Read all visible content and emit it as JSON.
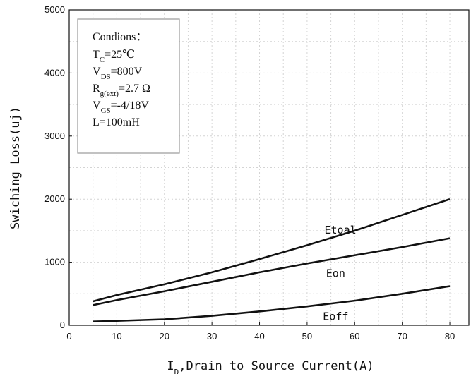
{
  "chart_data": {
    "type": "line",
    "title": "",
    "xlabel": "I",
    "xlabel_sub": "D",
    "xlabel_rest": ",Drain to Source Current(A)",
    "ylabel": "Swiching Loss(uj)",
    "xlim": [
      0,
      84
    ],
    "ylim": [
      0,
      5000
    ],
    "xticks": [
      "0",
      "10",
      "20",
      "30",
      "40",
      "50",
      "60",
      "70",
      "80"
    ],
    "yticks": [
      "0",
      "1000",
      "2000",
      "3000",
      "4000",
      "5000"
    ],
    "grid": true,
    "x": [
      5,
      10,
      20,
      30,
      40,
      50,
      60,
      70,
      80
    ],
    "series": [
      {
        "name": "Etoal",
        "values": [
          380,
          480,
          650,
          840,
          1050,
          1270,
          1500,
          1750,
          2000
        ]
      },
      {
        "name": "Eon",
        "values": [
          320,
          400,
          540,
          690,
          840,
          980,
          1110,
          1240,
          1380
        ]
      },
      {
        "name": "Eoff",
        "values": [
          60,
          70,
          95,
          150,
          220,
          300,
          390,
          500,
          620
        ]
      }
    ],
    "line_color": "#111111",
    "conditions": {
      "title": "Condions：",
      "lines": [
        {
          "main": "T",
          "sub": "C",
          "rest": "=25℃"
        },
        {
          "main": "V",
          "sub": "DS",
          "rest": "=800V"
        },
        {
          "main": "R",
          "sub": "g(ext)",
          "rest": "=2.7 Ω"
        },
        {
          "main": "V",
          "sub": "GS",
          "rest": "=-4/18V"
        },
        {
          "main": "L=100mH",
          "sub": "",
          "rest": ""
        }
      ]
    }
  }
}
